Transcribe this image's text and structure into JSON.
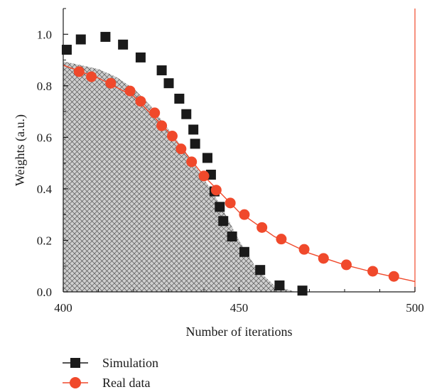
{
  "chart_data": {
    "type": "scatter",
    "title": "",
    "xlabel": "Number of iterations",
    "ylabel": "Weights (a.u.)",
    "xlim": [
      400,
      500
    ],
    "ylim": [
      0,
      1.1
    ],
    "x_ticks": [
      400,
      450,
      500
    ],
    "x_tick_labels": [
      "400",
      "450",
      "500"
    ],
    "y_ticks": [
      0,
      0.2,
      0.4,
      0.6,
      0.8,
      1.0
    ],
    "y_tick_labels": [
      "0.0",
      "0.2",
      "0.4",
      "0.6",
      "0.8",
      "1.0"
    ],
    "grid": false,
    "legend_position": "bottom-left, below plot",
    "shaded_region": "hatched area under the Simulation curve",
    "series": [
      {
        "name": "Simulation",
        "marker": "square",
        "color": "#1a1a1a",
        "points": [
          [
            401,
            0.94
          ],
          [
            405,
            0.98
          ],
          [
            412,
            0.99
          ],
          [
            417,
            0.96
          ],
          [
            422,
            0.91
          ],
          [
            428,
            0.86
          ],
          [
            430,
            0.81
          ],
          [
            433,
            0.75
          ],
          [
            435,
            0.69
          ],
          [
            437,
            0.63
          ],
          [
            437.5,
            0.575
          ],
          [
            441,
            0.52
          ],
          [
            442,
            0.455
          ],
          [
            443,
            0.39
          ],
          [
            444.5,
            0.33
          ],
          [
            445.5,
            0.275
          ],
          [
            448,
            0.215
          ],
          [
            451.5,
            0.155
          ],
          [
            456,
            0.085
          ],
          [
            461.5,
            0.025
          ],
          [
            468,
            0.005
          ]
        ]
      },
      {
        "name": "Real data",
        "marker": "circle",
        "color": "#f0492b",
        "points": [
          [
            404.5,
            0.855
          ],
          [
            408,
            0.835
          ],
          [
            413.5,
            0.81
          ],
          [
            419,
            0.78
          ],
          [
            422,
            0.74
          ],
          [
            426,
            0.695
          ],
          [
            428,
            0.645
          ],
          [
            431,
            0.605
          ],
          [
            433.5,
            0.555
          ],
          [
            436.5,
            0.505
          ],
          [
            440,
            0.45
          ],
          [
            443.5,
            0.395
          ],
          [
            447.5,
            0.345
          ],
          [
            451.5,
            0.3
          ],
          [
            456.5,
            0.25
          ],
          [
            462,
            0.205
          ],
          [
            468.5,
            0.165
          ],
          [
            474,
            0.13
          ],
          [
            480.5,
            0.105
          ],
          [
            488,
            0.08
          ],
          [
            494,
            0.06
          ]
        ],
        "fit_line": [
          [
            400,
            0.88
          ],
          [
            410,
            0.83
          ],
          [
            420,
            0.76
          ],
          [
            430,
            0.62
          ],
          [
            440,
            0.45
          ],
          [
            450,
            0.31
          ],
          [
            460,
            0.215
          ],
          [
            470,
            0.15
          ],
          [
            480,
            0.105
          ],
          [
            490,
            0.07
          ],
          [
            500,
            0.04
          ]
        ]
      }
    ]
  },
  "colors": {
    "simulation": "#1a1a1a",
    "real_data": "#f0492b",
    "right_axis": "#f0492b",
    "hatch_fill": "#cfcfcf",
    "hatch_lines": "#555555"
  }
}
